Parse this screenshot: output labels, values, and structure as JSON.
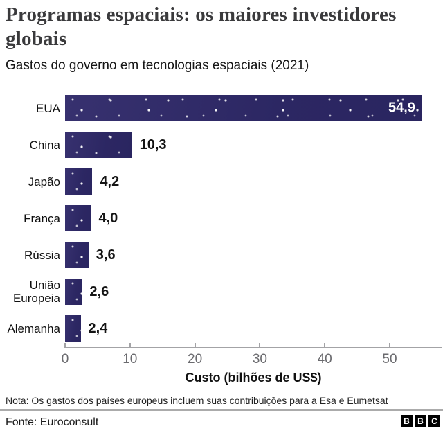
{
  "header": {
    "title": "Programas espaciais: os maiores investidores globais",
    "subtitle": "Gastos do governo em tecnologias espaciais (2021)"
  },
  "chart_data": {
    "type": "bar",
    "orientation": "horizontal",
    "categories": [
      "EUA",
      "China",
      "Japão",
      "França",
      "Rússia",
      "União Europeia",
      "Alemanha"
    ],
    "values": [
      54.9,
      10.3,
      4.2,
      4.0,
      3.6,
      2.6,
      2.4
    ],
    "value_labels": [
      "54,9",
      "10,3",
      "4,2",
      "4,0",
      "3,6",
      "2,6",
      "2,4"
    ],
    "title": "Programas espaciais: os maiores investidores globais",
    "subtitle": "Gastos do governo em tecnologias espaciais (2021)",
    "xlabel": "Custo (bilhões de US$)",
    "ylabel": "",
    "xticks": [
      0,
      10,
      20,
      30,
      40,
      50
    ],
    "xlim": [
      0,
      58
    ],
    "grid": false,
    "legend": "none",
    "bar_color": "#2e2963",
    "star_dot_color": "#ffffff",
    "value_label_inside_color": "#ffffff",
    "value_label_outside_color": "#141414"
  },
  "footer": {
    "note": "Nota: Os gastos dos países europeus incluem suas contribuições para a Esa e Eumetsat",
    "source": "Fonte: Euroconsult",
    "logo_letters": [
      "B",
      "B",
      "C"
    ]
  }
}
